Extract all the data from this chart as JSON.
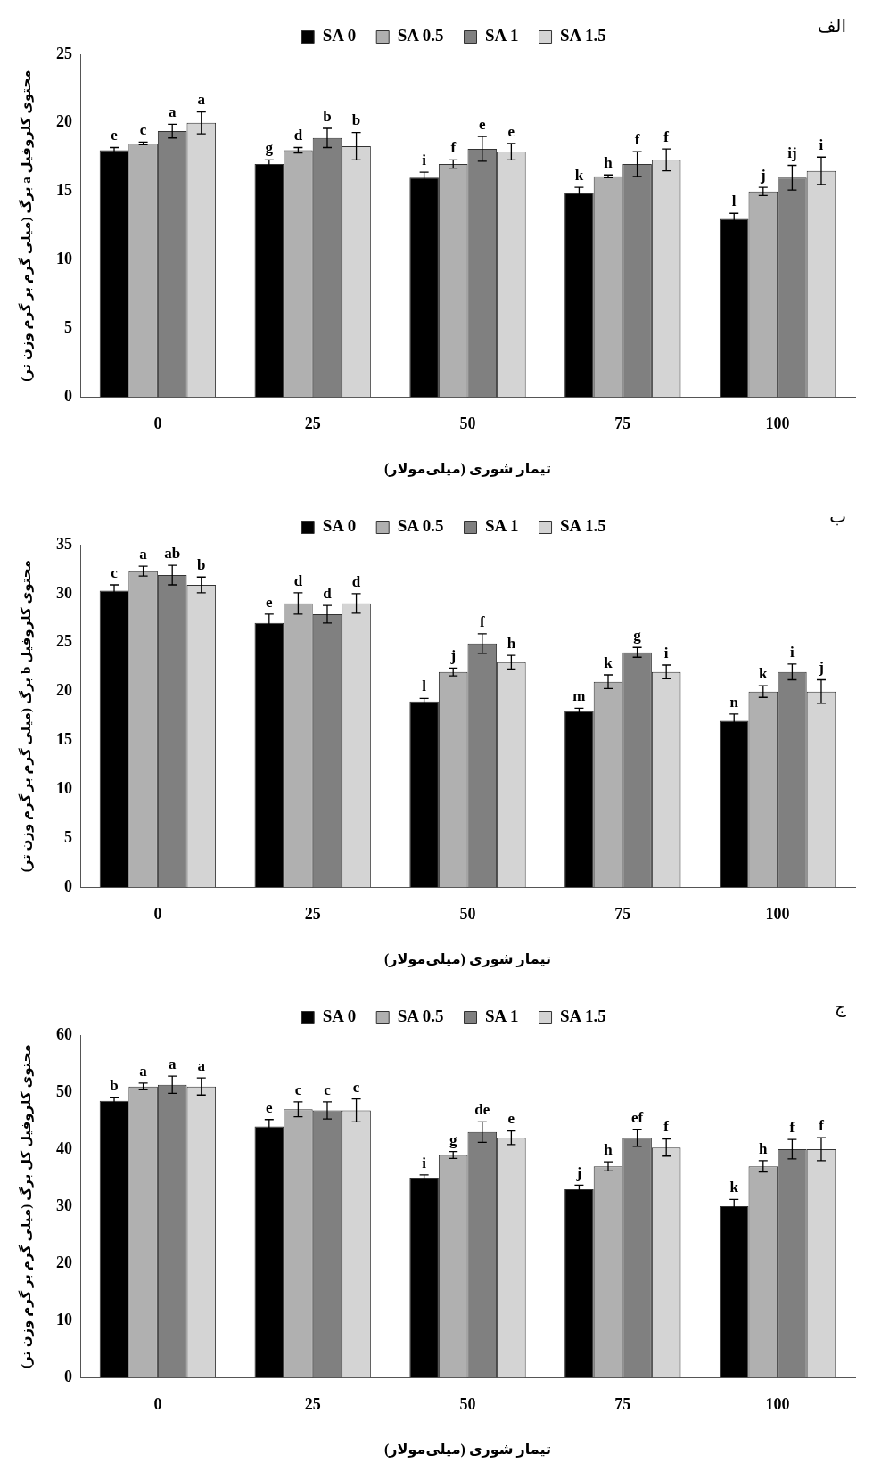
{
  "chart_data": [
    {
      "type": "bar",
      "xlabel": "تیمار شوری (میلی‌مولار)",
      "ylabel": "محتوی کلروفیل a برگ (میلی گرم بر گرم وزن تر)",
      "categories": [
        "0",
        "25",
        "50",
        "75",
        "100"
      ],
      "ylim": [
        0,
        25
      ],
      "yticks": [
        0,
        5,
        10,
        15,
        20,
        25
      ],
      "grid": false,
      "legend": "top",
      "annotations": [
        "الف"
      ],
      "series": [
        {
          "name": "SA 0",
          "color": "#000000",
          "values": [
            18,
            17,
            16,
            14.9,
            13
          ],
          "errors": [
            0.2,
            0.3,
            0.4,
            0.4,
            0.4
          ],
          "value_labels": [
            "e",
            "g",
            "i",
            "k",
            "l"
          ]
        },
        {
          "name": "SA 0.5",
          "color": "#b0b0b0",
          "values": [
            18.5,
            18,
            17,
            16.1,
            15
          ],
          "errors": [
            0.1,
            0.2,
            0.3,
            0.1,
            0.3
          ],
          "value_labels": [
            "c",
            "d",
            "f",
            "h",
            "j"
          ]
        },
        {
          "name": "SA 1",
          "color": "#808080",
          "values": [
            19.4,
            18.9,
            18.1,
            17,
            16
          ],
          "errors": [
            0.5,
            0.7,
            0.9,
            0.9,
            0.9
          ],
          "value_labels": [
            "a",
            "b",
            "e",
            "f",
            "ij"
          ]
        },
        {
          "name": "SA 1.5",
          "color": "#d4d4d4",
          "values": [
            20,
            18.3,
            17.9,
            17.3,
            16.5
          ],
          "errors": [
            0.8,
            1,
            0.6,
            0.8,
            1
          ],
          "value_labels": [
            "a",
            "b",
            "e",
            "f",
            "i"
          ]
        }
      ]
    },
    {
      "type": "bar",
      "xlabel": "تیمار شوری (میلی‌مولار)",
      "ylabel": "محتوی کلروفیل b برگ (میلی گرم بر گرم وزن تر)",
      "categories": [
        "0",
        "25",
        "50",
        "75",
        "100"
      ],
      "ylim": [
        0,
        35
      ],
      "yticks": [
        0,
        5,
        10,
        15,
        20,
        25,
        30,
        35
      ],
      "grid": false,
      "legend": "top",
      "annotations": [
        "ب"
      ],
      "series": [
        {
          "name": "SA 0",
          "color": "#000000",
          "values": [
            30.3,
            27,
            19,
            18,
            17
          ],
          "errors": [
            0.6,
            0.9,
            0.3,
            0.3,
            0.7
          ],
          "value_labels": [
            "c",
            "e",
            "l",
            "m",
            "n"
          ]
        },
        {
          "name": "SA 0.5",
          "color": "#b0b0b0",
          "values": [
            32.3,
            29,
            22,
            21,
            20
          ],
          "errors": [
            0.5,
            1.1,
            0.4,
            0.7,
            0.6
          ],
          "value_labels": [
            "a",
            "d",
            "j",
            "k",
            "k"
          ]
        },
        {
          "name": "SA 1",
          "color": "#808080",
          "values": [
            31.9,
            27.9,
            24.9,
            24,
            22
          ],
          "errors": [
            1,
            0.9,
            1,
            0.5,
            0.8
          ],
          "value_labels": [
            "ab",
            "d",
            "f",
            "g",
            "i"
          ]
        },
        {
          "name": "SA 1.5",
          "color": "#d4d4d4",
          "values": [
            30.9,
            29,
            23,
            22,
            20
          ],
          "errors": [
            0.8,
            1,
            0.7,
            0.7,
            1.2
          ],
          "value_labels": [
            "b",
            "d",
            "h",
            "i",
            "j"
          ]
        }
      ]
    },
    {
      "type": "bar",
      "xlabel": "تیمار شوری (میلی‌مولار)",
      "ylabel": "محتوی کلروفیل کل برگ (میلی گرم بر گرم وزن تر)",
      "categories": [
        "0",
        "25",
        "50",
        "75",
        "100"
      ],
      "ylim": [
        0,
        60
      ],
      "yticks": [
        0,
        10,
        20,
        30,
        40,
        50,
        60
      ],
      "grid": false,
      "legend": "top",
      "annotations": [
        "ج"
      ],
      "series": [
        {
          "name": "SA 0",
          "color": "#000000",
          "values": [
            48.5,
            44,
            35,
            33,
            30
          ],
          "errors": [
            0.5,
            1.2,
            0.5,
            0.7,
            1.2
          ],
          "value_labels": [
            "b",
            "e",
            "i",
            "j",
            "k"
          ]
        },
        {
          "name": "SA 0.5",
          "color": "#b0b0b0",
          "values": [
            51,
            47,
            39,
            37,
            37
          ],
          "errors": [
            0.6,
            1.3,
            0.6,
            0.8,
            1
          ],
          "value_labels": [
            "a",
            "c",
            "g",
            "h",
            "h"
          ]
        },
        {
          "name": "SA 1",
          "color": "#808080",
          "values": [
            51.3,
            46.8,
            43,
            42,
            40
          ],
          "errors": [
            1.5,
            1.5,
            1.8,
            1.5,
            1.7
          ],
          "value_labels": [
            "a",
            "c",
            "de",
            "ef",
            "f"
          ]
        },
        {
          "name": "SA 1.5",
          "color": "#d4d4d4",
          "values": [
            51,
            46.8,
            42,
            40.3,
            40
          ],
          "errors": [
            1.5,
            2,
            1.2,
            1.5,
            2
          ],
          "value_labels": [
            "a",
            "c",
            "e",
            "f",
            "f"
          ]
        }
      ]
    }
  ]
}
